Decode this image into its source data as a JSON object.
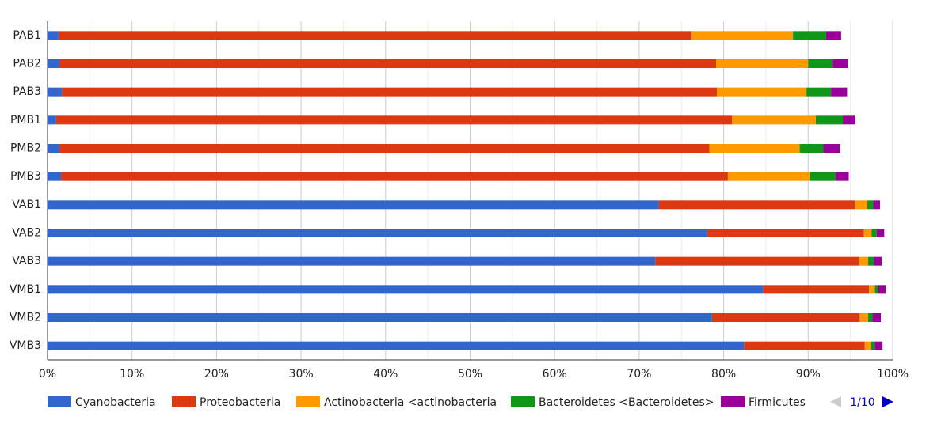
{
  "chart_data": {
    "type": "stacked_bar_horizontal",
    "categories": [
      "PAB1",
      "PAB2",
      "PAB3",
      "PMB1",
      "PMB2",
      "PMB3",
      "VAB1",
      "VAB2",
      "VAB3",
      "VMB1",
      "VMB2",
      "VMB3"
    ],
    "series": [
      {
        "name": "Cyanobacteria",
        "color": "#3366cc",
        "values": [
          1.3,
          1.4,
          1.7,
          1.0,
          1.4,
          1.6,
          72.3,
          78.0,
          71.9,
          84.7,
          78.6,
          82.4
        ]
      },
      {
        "name": "Proteobacteria",
        "color": "#dc3912",
        "values": [
          74.9,
          77.7,
          77.5,
          80.0,
          76.9,
          78.9,
          23.2,
          18.6,
          24.1,
          12.5,
          17.5,
          14.3
        ]
      },
      {
        "name": "Actinobacteria <actinobacteria",
        "color": "#ff9900",
        "values": [
          12.0,
          10.9,
          10.6,
          9.9,
          10.7,
          9.7,
          1.5,
          0.9,
          1.1,
          0.7,
          1.0,
          0.7
        ]
      },
      {
        "name": "Bacteroidetes <Bacteroidetes>",
        "color": "#109618",
        "values": [
          3.9,
          2.9,
          2.9,
          3.2,
          2.8,
          3.1,
          0.7,
          0.6,
          0.7,
          0.4,
          0.5,
          0.5
        ]
      },
      {
        "name": "Firmicutes",
        "color": "#990099",
        "values": [
          1.8,
          1.8,
          1.9,
          1.5,
          2.0,
          1.5,
          0.8,
          0.9,
          0.9,
          0.9,
          1.0,
          0.9
        ]
      }
    ],
    "xlim": [
      0,
      100
    ],
    "xticks": [
      {
        "value": 0,
        "label": "0%"
      },
      {
        "value": 10,
        "label": "10%"
      },
      {
        "value": 20,
        "label": "20%"
      },
      {
        "value": 30,
        "label": "30%"
      },
      {
        "value": 40,
        "label": "40%"
      },
      {
        "value": 50,
        "label": "50%"
      },
      {
        "value": 60,
        "label": "60%"
      },
      {
        "value": 70,
        "label": "70%"
      },
      {
        "value": 80,
        "label": "80%"
      },
      {
        "value": 90,
        "label": "90%"
      },
      {
        "value": 100,
        "label": "100%"
      }
    ],
    "grid": true,
    "legend": "bottom",
    "legend_page": "1/10"
  }
}
